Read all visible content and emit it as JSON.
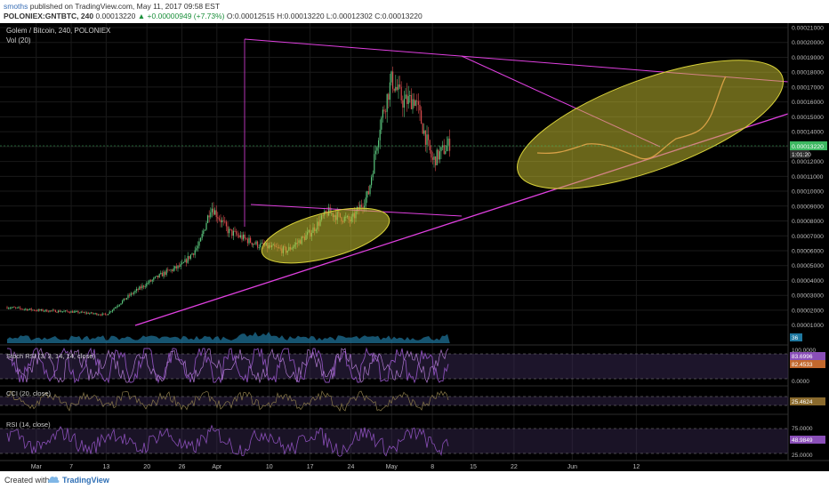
{
  "header": {
    "author": "smoths",
    "published": "published on TradingView.com, May 11, 2017 09:58 EST",
    "symbol": "POLONIEX:GNTBTC, 240",
    "last": "0.00013220",
    "change_arrow": "▲",
    "change": "+0.00000949 (+7.73%)",
    "ohlc": "O:0.00012515 H:0.00013220 L:0.00012302 C:0.00013220"
  },
  "main_legend": {
    "title": "Golem / Bitcoin, 240, POLONIEX",
    "vol": "Vol (20)"
  },
  "price_labels": {
    "current": "0.00013220",
    "countdown": "1:01:20",
    "volume": "36"
  },
  "colors": {
    "background": "#000000",
    "up": "#59c47c",
    "down": "#d2494b",
    "trendline": "#e040e0",
    "ellipse_fill": "#c9c232",
    "indicator": "#8a4fb8",
    "volume": "#1f78a0",
    "current_label": "#3cb861"
  },
  "panes": {
    "stoch": {
      "title": "Stoch RSI (3, 3, 14, 14, close)",
      "labels": [
        "100.0000",
        "0.0000"
      ],
      "values": [
        "83.6996",
        "82.4533"
      ]
    },
    "cci": {
      "title": "CCI (20, close)",
      "value": "25.4624"
    },
    "rsi": {
      "title": "RSI (14, close)",
      "labels": [
        "75.0000",
        "25.0000"
      ],
      "value": "48.9849"
    }
  },
  "footer": {
    "created": "Created with",
    "brand": "TradingView"
  },
  "chart_data": {
    "type": "candlestick",
    "title": "Golem / Bitcoin, 240, POLONIEX",
    "y_ticks": [
      "0.00021000",
      "0.00020000",
      "0.00019000",
      "0.00018000",
      "0.00017000",
      "0.00016000",
      "0.00015000",
      "0.00014000",
      "0.00013000",
      "0.00012000",
      "0.00011000",
      "0.00010000",
      "0.00009000",
      "0.00008000",
      "0.00007000",
      "0.00006000",
      "0.00005000",
      "0.00004000",
      "0.00003000",
      "0.00002000",
      "0.00001000"
    ],
    "x_ticks": [
      "Mar",
      "7",
      "13",
      "20",
      "26",
      "Apr",
      "10",
      "17",
      "24",
      "May",
      "8",
      "15",
      "22",
      "Jun",
      "12"
    ],
    "ylim": [
      8.3e-07,
      0.00021
    ],
    "last_close": 0.0001322,
    "series": [
      {
        "name": "price",
        "values": [
          {
            "date": "2017-02-24",
            "close": 2.2e-05
          },
          {
            "date": "2017-03-01",
            "close": 2e-05
          },
          {
            "date": "2017-03-07",
            "close": 1.9e-05
          },
          {
            "date": "2017-03-13",
            "close": 1.7e-05
          },
          {
            "date": "2017-03-17",
            "close": 3e-05
          },
          {
            "date": "2017-03-20",
            "close": 3.8e-05
          },
          {
            "date": "2017-03-23",
            "close": 4.5e-05
          },
          {
            "date": "2017-03-26",
            "close": 5e-05
          },
          {
            "date": "2017-03-29",
            "close": 6.4e-05
          },
          {
            "date": "2017-03-31",
            "close": 9e-05
          },
          {
            "date": "2017-04-03",
            "close": 7.3e-05
          },
          {
            "date": "2017-04-08",
            "close": 6.4e-05
          },
          {
            "date": "2017-04-13",
            "close": 6e-05
          },
          {
            "date": "2017-04-17",
            "close": 7.2e-05
          },
          {
            "date": "2017-04-20",
            "close": 8.6e-05
          },
          {
            "date": "2017-04-24",
            "close": 8e-05
          },
          {
            "date": "2017-04-27",
            "close": 9.8e-05
          },
          {
            "date": "2017-04-29",
            "close": 0.000145
          },
          {
            "date": "2017-05-01",
            "close": 0.000175
          },
          {
            "date": "2017-05-03",
            "close": 0.00016
          },
          {
            "date": "2017-05-05",
            "close": 0.000162
          },
          {
            "date": "2017-05-08",
            "close": 0.00012
          },
          {
            "date": "2017-05-11",
            "close": 0.0001322
          }
        ]
      }
    ]
  }
}
